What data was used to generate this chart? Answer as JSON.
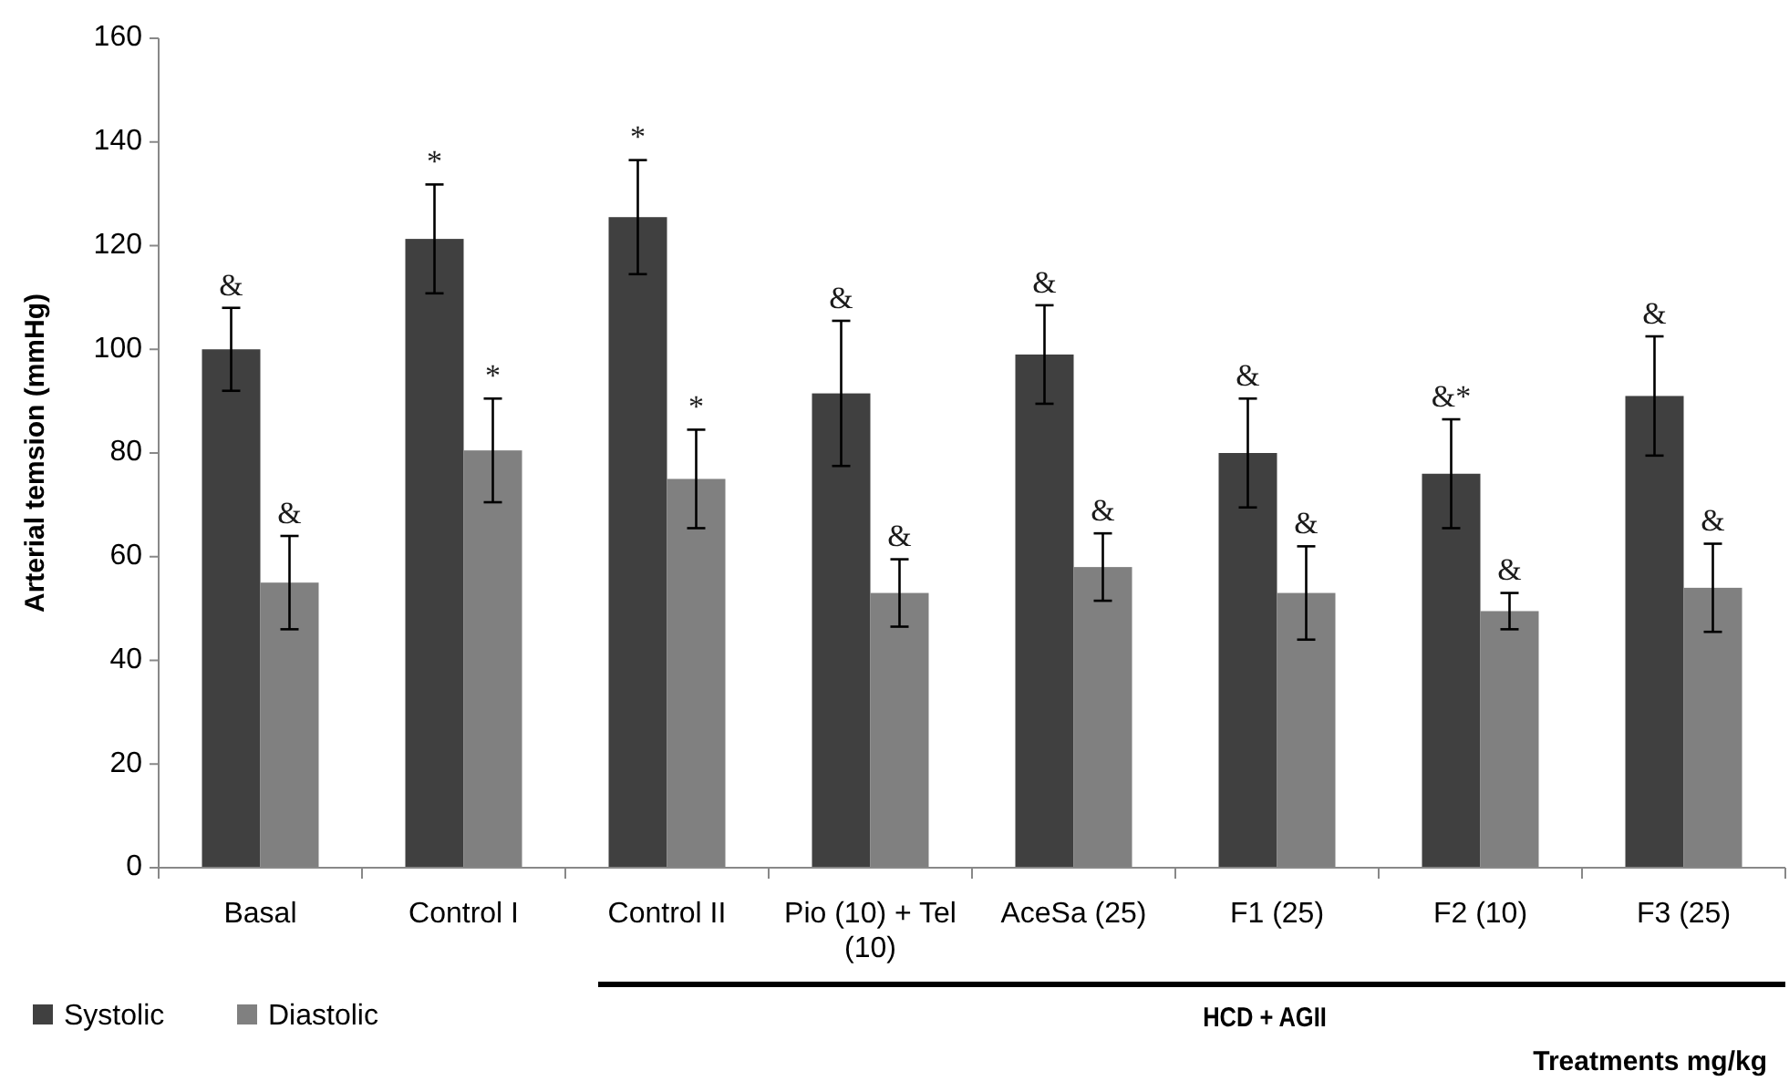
{
  "chart_data": {
    "type": "bar",
    "xlabel": "Treatments mg/kg",
    "ylabel": "Arterial temsion (mmHg)",
    "categories": [
      "Basal",
      "Control I",
      "Control II",
      "Pio (10) + Tel (10)",
      "AceSa (25)",
      "F1 (25)",
      "F2 (10)",
      "F3 (25)"
    ],
    "series": [
      {
        "name": "Systolic",
        "color": "#404040",
        "values": [
          100,
          121.3,
          125.5,
          91.5,
          99,
          80,
          76,
          91
        ],
        "errors": [
          8,
          10.5,
          11,
          14,
          9.5,
          10.5,
          10.5,
          11.5
        ]
      },
      {
        "name": "Diastolic",
        "color": "#808080",
        "values": [
          55,
          80.5,
          75,
          53,
          58,
          53,
          49.5,
          54
        ],
        "errors": [
          9,
          10,
          9.5,
          6.5,
          6.5,
          9,
          3.5,
          8.5
        ]
      }
    ],
    "ylim": [
      0,
      160
    ],
    "yticks": [
      0,
      20,
      40,
      60,
      80,
      100,
      120,
      140,
      160
    ],
    "grid": false,
    "legend": "bottom left",
    "annotations": [
      {
        "text": "&",
        "x": "Basal",
        "y": 100
      },
      {
        "text": "&",
        "x": "Basal",
        "y": 55
      },
      {
        "text": "*",
        "x": "Control I",
        "y": 121.3
      },
      {
        "text": "*",
        "x": "Control I",
        "y": 80.5
      },
      {
        "text": "*",
        "x": "Control II",
        "y": 125.5
      },
      {
        "text": "*",
        "x": "Control II",
        "y": 75
      },
      {
        "text": "&",
        "x": "Pio (10) + Tel (10)",
        "y": 91.5
      },
      {
        "text": "&",
        "x": "Pio (10) + Tel (10)",
        "y": 53
      },
      {
        "text": "&",
        "x": "AceSa (25)",
        "y": 99
      },
      {
        "text": "&",
        "x": "AceSa (25)",
        "y": 58
      },
      {
        "text": "&",
        "x": "F1 (25)",
        "y": 53
      },
      {
        "text": "&",
        "x": "F1 (25)",
        "y": 80
      },
      {
        "text": "&*",
        "x": "F2 (10)",
        "y": 76
      },
      {
        "text": "&",
        "x": "F2 (10)",
        "y": 49.5
      },
      {
        "text": "&",
        "x": "F3 (25)",
        "y": 91
      },
      {
        "text": "&",
        "x": "F3 (25)",
        "y": 54
      },
      "HCD + AGII"
    ]
  }
}
